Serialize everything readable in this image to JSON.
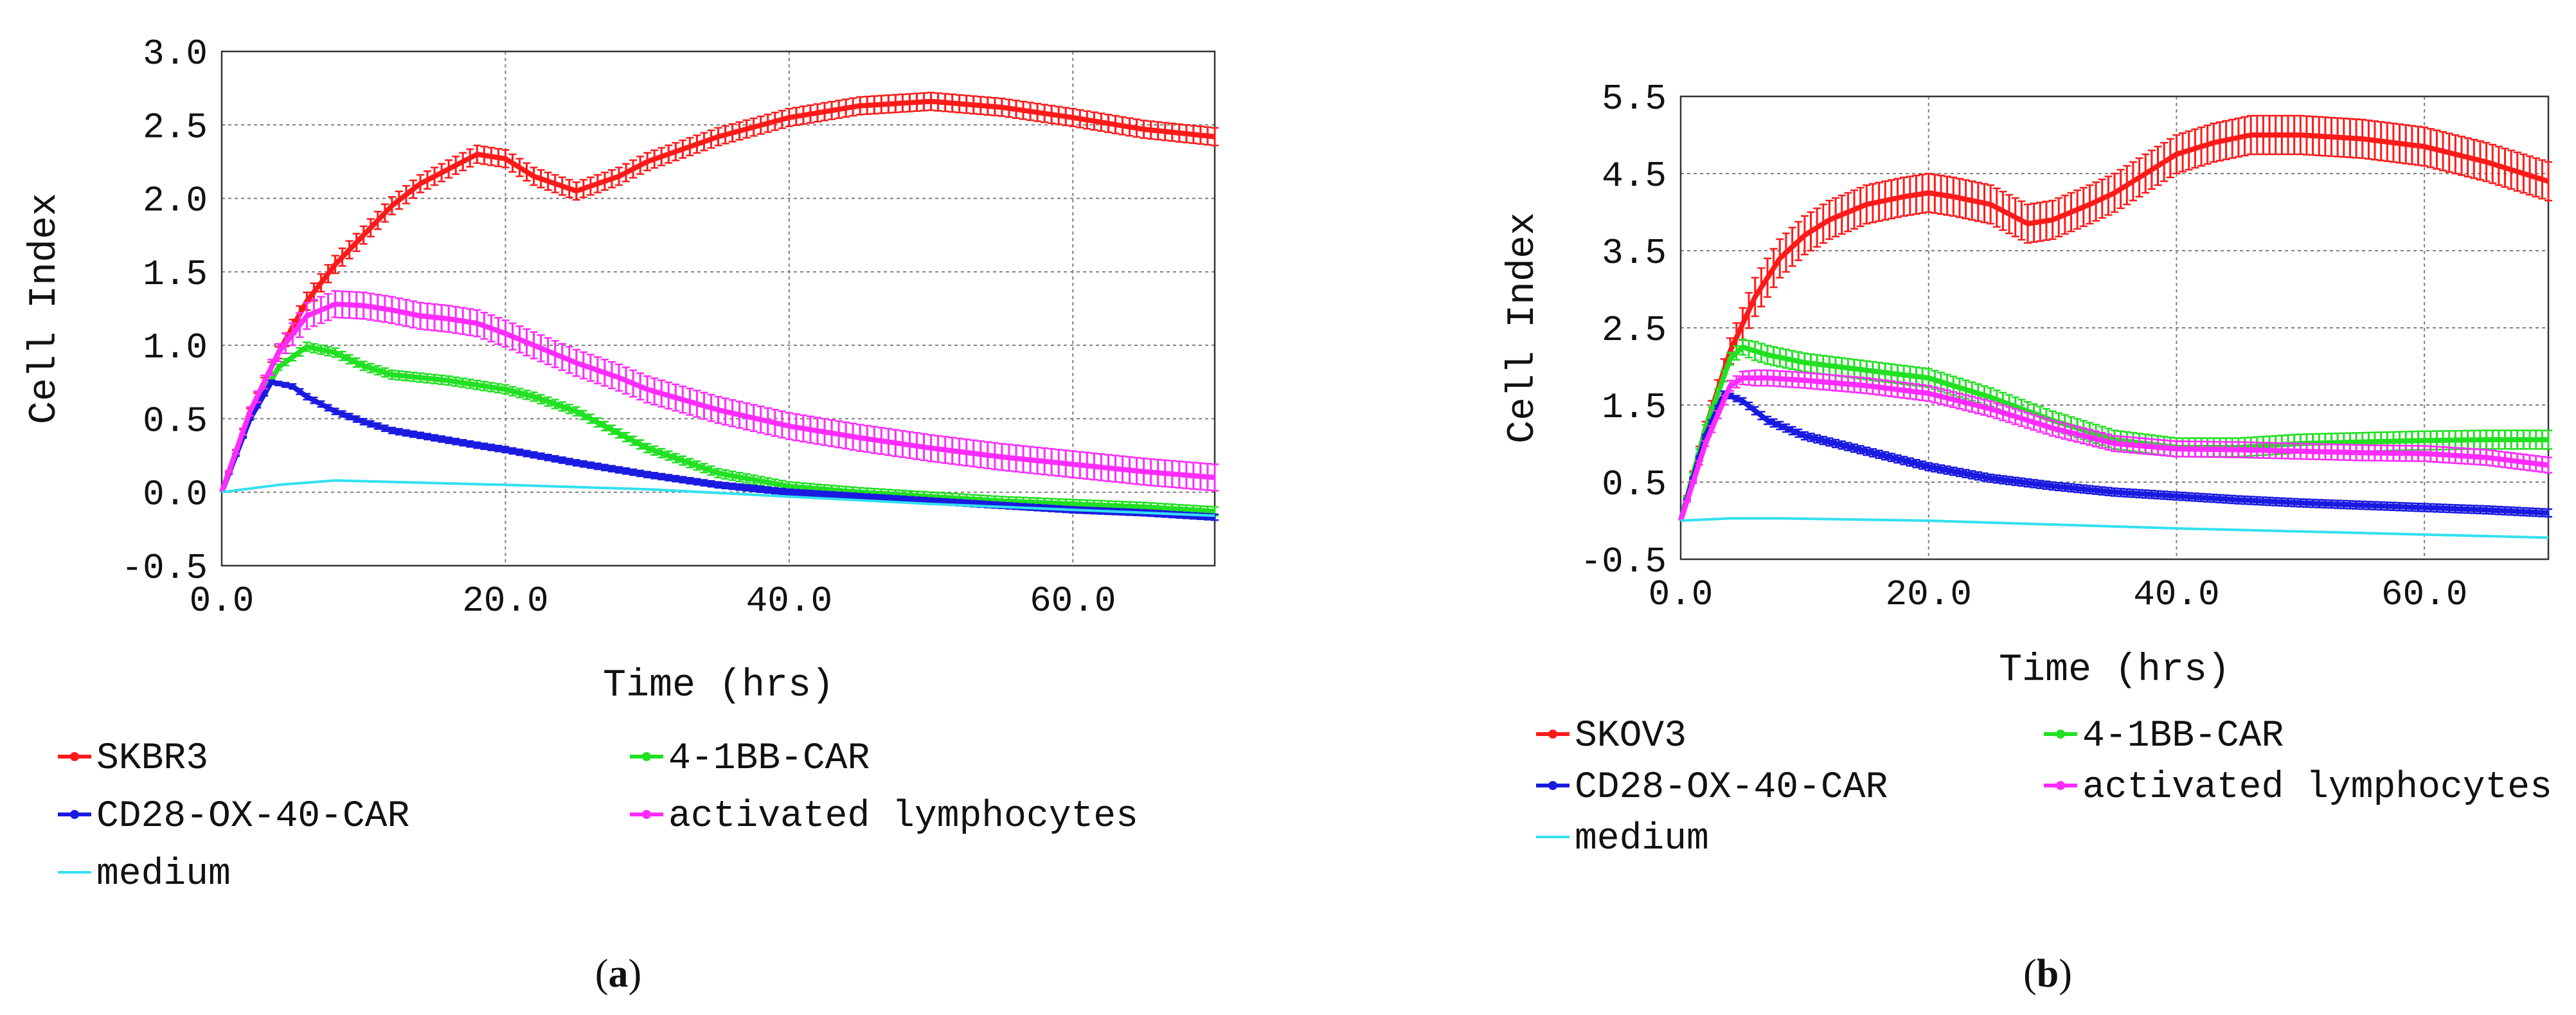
{
  "colors": {
    "red": "#ff1a1a",
    "green": "#22e022",
    "blue": "#1a1ae0",
    "magenta": "#ff2bff",
    "cyan": "#33e0f0"
  },
  "chart_data": [
    {
      "id": "a",
      "type": "line",
      "caption_letter": "a",
      "xlabel": "Time (hrs)",
      "ylabel": "Cell Index",
      "xlim": [
        0,
        70
      ],
      "ylim": [
        -0.5,
        3.0
      ],
      "xticks": [
        0,
        20,
        40,
        60
      ],
      "xtick_labels": [
        "0.0",
        "20.0",
        "40.0",
        "60.0"
      ],
      "yticks": [
        -0.5,
        0.0,
        0.5,
        1.0,
        1.5,
        2.0,
        2.5,
        3.0
      ],
      "ytick_labels": [
        "-0.5",
        "0.0",
        "0.5",
        "1.0",
        "1.5",
        "2.0",
        "2.5",
        "3.0"
      ],
      "grid": true,
      "legend_position": "bottom",
      "series": [
        {
          "name": "SKBR3",
          "color_key": "red",
          "errbar": 0.06,
          "x": [
            0,
            2,
            4,
            6,
            8,
            10,
            12,
            14,
            16,
            18,
            20,
            22,
            25,
            28,
            30,
            35,
            40,
            45,
            50,
            55,
            60,
            65,
            70
          ],
          "y": [
            0,
            0.55,
            0.95,
            1.3,
            1.55,
            1.75,
            1.95,
            2.1,
            2.2,
            2.3,
            2.27,
            2.15,
            2.05,
            2.15,
            2.25,
            2.42,
            2.55,
            2.63,
            2.66,
            2.62,
            2.55,
            2.47,
            2.42
          ]
        },
        {
          "name": "4-1BB-CAR",
          "color_key": "green",
          "errbar": 0.03,
          "x": [
            0,
            2,
            4,
            6,
            8,
            10,
            12,
            14,
            16,
            18,
            20,
            22,
            25,
            28,
            30,
            35,
            40,
            45,
            50,
            55,
            60,
            65,
            70
          ],
          "y": [
            0,
            0.5,
            0.85,
            0.99,
            0.95,
            0.86,
            0.8,
            0.78,
            0.76,
            0.73,
            0.7,
            0.65,
            0.55,
            0.4,
            0.3,
            0.13,
            0.04,
            0.0,
            -0.03,
            -0.06,
            -0.08,
            -0.1,
            -0.13
          ]
        },
        {
          "name": "CD28-OX-40-CAR",
          "color_key": "blue",
          "errbar": 0.02,
          "x": [
            0,
            2,
            3.5,
            5,
            6,
            8,
            10,
            12,
            15,
            18,
            20,
            25,
            30,
            35,
            40,
            45,
            50,
            55,
            60,
            65,
            70
          ],
          "y": [
            0,
            0.5,
            0.75,
            0.72,
            0.65,
            0.55,
            0.48,
            0.42,
            0.37,
            0.32,
            0.29,
            0.2,
            0.12,
            0.05,
            0.0,
            -0.03,
            -0.06,
            -0.09,
            -0.12,
            -0.14,
            -0.17
          ]
        },
        {
          "name": "activated lymphocytes",
          "color_key": "magenta",
          "errbar": 0.09,
          "x": [
            0,
            2,
            4,
            6,
            8,
            10,
            12,
            14,
            16,
            18,
            20,
            22,
            25,
            28,
            30,
            35,
            40,
            45,
            50,
            55,
            60,
            65,
            70
          ],
          "y": [
            0,
            0.55,
            0.95,
            1.2,
            1.28,
            1.27,
            1.24,
            1.2,
            1.18,
            1.15,
            1.08,
            1.0,
            0.88,
            0.78,
            0.7,
            0.56,
            0.45,
            0.37,
            0.3,
            0.24,
            0.19,
            0.14,
            0.1
          ]
        },
        {
          "name": "medium",
          "color_key": "cyan",
          "errbar": 0,
          "x": [
            0,
            4,
            8,
            12,
            20,
            30,
            40,
            50,
            60,
            70
          ],
          "y": [
            0,
            0.05,
            0.08,
            0.07,
            0.05,
            0.02,
            -0.03,
            -0.08,
            -0.12,
            -0.16
          ]
        }
      ]
    },
    {
      "id": "b",
      "type": "line",
      "caption_letter": "b",
      "xlabel": "Time (hrs)",
      "ylabel": "Cell Index",
      "xlim": [
        0,
        70
      ],
      "ylim": [
        -0.5,
        5.5
      ],
      "xticks": [
        0,
        20,
        40,
        60
      ],
      "xtick_labels": [
        "0.0",
        "20.0",
        "40.0",
        "60.0"
      ],
      "yticks": [
        -0.5,
        0.5,
        1.5,
        2.5,
        3.5,
        4.5,
        5.5
      ],
      "ytick_labels": [
        "-0.5",
        "0.5",
        "1.5",
        "2.5",
        "3.5",
        "4.5",
        "5.5"
      ],
      "grid": true,
      "legend_position": "bottom",
      "series": [
        {
          "name": "SKOV3",
          "color_key": "red",
          "errbar": 0.25,
          "x": [
            0,
            2,
            4,
            6,
            8,
            10,
            12,
            15,
            18,
            20,
            22,
            25,
            28,
            30,
            33,
            35,
            38,
            40,
            43,
            46,
            50,
            55,
            60,
            65,
            70
          ],
          "y": [
            0,
            1.2,
            2.2,
            2.9,
            3.4,
            3.7,
            3.9,
            4.1,
            4.2,
            4.25,
            4.2,
            4.1,
            3.85,
            3.9,
            4.1,
            4.25,
            4.55,
            4.75,
            4.9,
            5.0,
            5.0,
            4.95,
            4.85,
            4.65,
            4.4
          ]
        },
        {
          "name": "4-1BB-CAR",
          "color_key": "green",
          "errbar": 0.12,
          "x": [
            0,
            2,
            4,
            5,
            7,
            10,
            15,
            20,
            25,
            30,
            35,
            40,
            45,
            50,
            55,
            60,
            65,
            70
          ],
          "y": [
            0,
            1.2,
            2.1,
            2.25,
            2.15,
            2.05,
            1.95,
            1.85,
            1.6,
            1.3,
            1.05,
            0.95,
            0.95,
            1.0,
            1.02,
            1.04,
            1.05,
            1.05
          ]
        },
        {
          "name": "CD28-OX-40-CAR",
          "color_key": "blue",
          "errbar": 0.05,
          "x": [
            0,
            2,
            3.5,
            5,
            7,
            10,
            15,
            20,
            25,
            30,
            35,
            40,
            45,
            50,
            55,
            60,
            65,
            70
          ],
          "y": [
            0,
            1.1,
            1.65,
            1.55,
            1.3,
            1.1,
            0.9,
            0.7,
            0.55,
            0.45,
            0.37,
            0.32,
            0.27,
            0.23,
            0.2,
            0.17,
            0.14,
            0.1
          ]
        },
        {
          "name": "activated lymphocytes",
          "color_key": "magenta",
          "errbar": 0.1,
          "x": [
            0,
            2,
            4,
            5,
            7,
            10,
            15,
            20,
            25,
            30,
            35,
            40,
            45,
            50,
            55,
            60,
            65,
            70
          ],
          "y": [
            0,
            1.0,
            1.75,
            1.85,
            1.85,
            1.82,
            1.75,
            1.65,
            1.45,
            1.2,
            1.0,
            0.93,
            0.92,
            0.9,
            0.88,
            0.87,
            0.82,
            0.72
          ]
        },
        {
          "name": "medium",
          "color_key": "cyan",
          "errbar": 0,
          "x": [
            0,
            4,
            8,
            20,
            30,
            40,
            50,
            60,
            70
          ],
          "y": [
            0,
            0.03,
            0.03,
            0.0,
            -0.05,
            -0.1,
            -0.14,
            -0.18,
            -0.22
          ]
        }
      ]
    }
  ]
}
